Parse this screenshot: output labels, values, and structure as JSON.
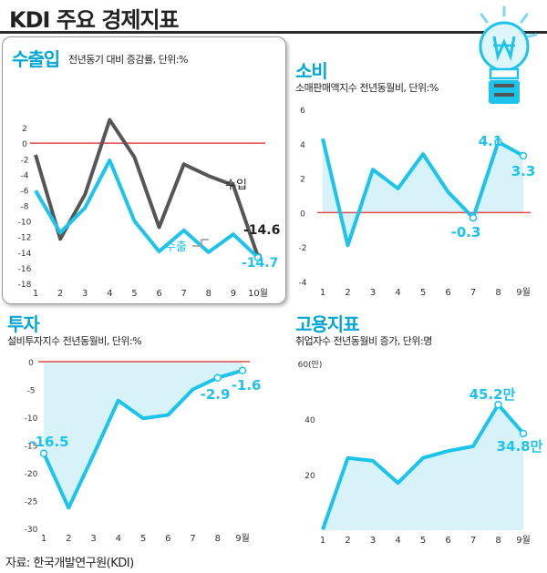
{
  "header": {
    "title": "KDI 주요 경제지표"
  },
  "source": "자료:  한국개발연구원(KDI)",
  "colors": {
    "cyan": "#1cc4ec",
    "gray": "#565656",
    "zero": "#e24a4a",
    "fill": "#d8f2fa",
    "tick": "#333333"
  },
  "chart_data": [
    {
      "id": "trade",
      "type": "line",
      "title": "수출입",
      "subtitle": "전년동기 대비 증감률, 단위:%",
      "x": [
        "1",
        "2",
        "3",
        "4",
        "5",
        "6",
        "7",
        "8",
        "9",
        "10월"
      ],
      "yticks": [
        2,
        0,
        -2,
        -4,
        -6,
        -8,
        -10,
        -12,
        -14,
        -16,
        -18
      ],
      "ylim": [
        -18,
        4
      ],
      "series": [
        {
          "name": "수입",
          "values": [
            -1.5,
            -12.3,
            -6.6,
            3.0,
            -1.8,
            -10.8,
            -2.7,
            -4.2,
            -5.4,
            -14.6
          ]
        },
        {
          "name": "수출",
          "values": [
            -6.1,
            -11.5,
            -8.3,
            -2.2,
            -10.0,
            -13.9,
            -11.2,
            -14.0,
            -11.7,
            -14.7
          ]
        }
      ],
      "annotations": [
        "-14.6",
        "-14.7"
      ]
    },
    {
      "id": "consumption",
      "type": "area",
      "title": "소비",
      "subtitle": "소매판매액지수 전년동월비, 단위:%",
      "x": [
        "1",
        "2",
        "3",
        "4",
        "5",
        "6",
        "7",
        "8",
        "9월"
      ],
      "yticks": [
        6,
        4,
        2,
        0,
        -2,
        -4
      ],
      "ylim": [
        -4,
        6
      ],
      "series": [
        {
          "values": [
            4.3,
            -1.9,
            2.5,
            1.4,
            3.4,
            1.2,
            -0.3,
            4.1,
            3.3
          ]
        }
      ],
      "annotations": [
        "4.1",
        "3.3",
        "-0.3"
      ]
    },
    {
      "id": "investment",
      "type": "area",
      "title": "투자",
      "subtitle": "설비투자지수 전년동월비, 단위:%",
      "x": [
        "1",
        "2",
        "3",
        "4",
        "5",
        "6",
        "7",
        "8",
        "9월"
      ],
      "yticks": [
        0,
        -5,
        -10,
        -15,
        -20,
        -25,
        -30
      ],
      "ylim": [
        -30,
        0
      ],
      "series": [
        {
          "values": [
            -16.5,
            -26.3,
            -16.8,
            -7.0,
            -10.2,
            -9.6,
            -5.0,
            -2.9,
            -1.6
          ]
        }
      ],
      "annotations": [
        "-16.5",
        "-2.9",
        "-1.6"
      ]
    },
    {
      "id": "employment",
      "type": "area",
      "title": "고용지표",
      "subtitle": "취업자수 전년동월비 증가, 단위:명",
      "x": [
        "1",
        "2",
        "3",
        "4",
        "5",
        "6",
        "7",
        "8",
        "9월"
      ],
      "yticks": [
        "60(만)",
        "40",
        "20"
      ],
      "ylim": [
        0,
        60
      ],
      "series": [
        {
          "values": [
            0.2,
            26.0,
            25.0,
            17.0,
            26.0,
            28.5,
            30.2,
            45.2,
            34.8
          ]
        }
      ],
      "annotations": [
        "45.2만",
        "34.8만"
      ]
    }
  ]
}
